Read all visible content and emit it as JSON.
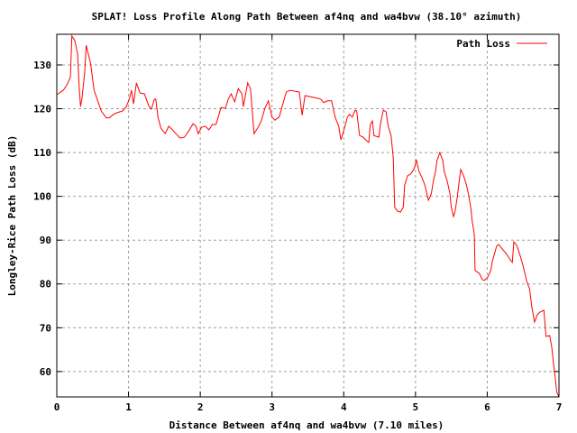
{
  "chart_data": {
    "type": "line",
    "title": "SPLAT! Loss Profile Along Path Between af4nq and wa4bvw (38.10° azimuth)",
    "xlabel": "Distance Between af4nq and wa4bvw (7.10 miles)",
    "ylabel": "Longley-Rice Path Loss (dB)",
    "xlim": [
      0,
      7
    ],
    "ylim": [
      54.2,
      137
    ],
    "xticks": [
      0,
      1,
      2,
      3,
      4,
      5,
      6,
      7
    ],
    "yticks": [
      60,
      70,
      80,
      90,
      100,
      110,
      120,
      130
    ],
    "grid": true,
    "legend_position": "top-right",
    "series": [
      {
        "name": "Path Loss",
        "color": "#ff0000",
        "x": [
          0.0,
          0.09,
          0.15,
          0.19,
          0.21,
          0.25,
          0.29,
          0.31,
          0.33,
          0.35,
          0.39,
          0.41,
          0.47,
          0.52,
          0.57,
          0.62,
          0.69,
          0.73,
          0.79,
          0.84,
          0.92,
          0.97,
          1.01,
          1.04,
          1.07,
          1.11,
          1.16,
          1.22,
          1.28,
          1.32,
          1.36,
          1.38,
          1.41,
          1.45,
          1.51,
          1.56,
          1.6,
          1.66,
          1.72,
          1.78,
          1.85,
          1.9,
          1.94,
          1.97,
          2.02,
          2.07,
          2.12,
          2.17,
          2.22,
          2.29,
          2.35,
          2.39,
          2.43,
          2.48,
          2.53,
          2.58,
          2.6,
          2.66,
          2.7,
          2.75,
          2.8,
          2.85,
          2.9,
          2.95,
          3.0,
          3.04,
          3.1,
          3.17,
          3.2,
          3.25,
          3.32,
          3.38,
          3.42,
          3.46,
          3.51,
          3.57,
          3.63,
          3.68,
          3.72,
          3.77,
          3.83,
          3.88,
          3.93,
          3.96,
          4.0,
          4.05,
          4.08,
          4.12,
          4.16,
          4.18,
          4.22,
          4.27,
          4.32,
          4.35,
          4.37,
          4.4,
          4.42,
          4.49,
          4.51,
          4.55,
          4.59,
          4.62,
          4.66,
          4.69,
          4.71,
          4.75,
          4.79,
          4.83,
          4.85,
          4.89,
          4.93,
          4.96,
          4.99,
          5.01,
          5.05,
          5.09,
          5.13,
          5.18,
          5.22,
          5.25,
          5.28,
          5.3,
          5.34,
          5.38,
          5.4,
          5.44,
          5.48,
          5.5,
          5.53,
          5.55,
          5.58,
          5.61,
          5.63,
          5.67,
          5.71,
          5.74,
          5.77,
          5.79,
          5.82,
          5.83,
          5.89,
          5.93,
          5.96,
          6.01,
          6.05,
          6.07,
          6.1,
          6.13,
          6.16,
          6.21,
          6.27,
          6.32,
          6.35,
          6.37,
          6.41,
          6.45,
          6.5,
          6.55,
          6.59,
          6.62,
          6.66,
          6.7,
          6.74,
          6.79,
          6.81,
          6.82,
          6.87,
          6.9,
          6.92,
          6.95,
          6.97,
          7.0
        ],
        "y": [
          123.2,
          124.2,
          125.7,
          127.3,
          136.6,
          135.6,
          132.5,
          125.3,
          120.5,
          122.2,
          128.4,
          134.5,
          130.4,
          124.2,
          121.8,
          119.5,
          117.9,
          117.9,
          118.7,
          119.1,
          119.5,
          120.5,
          122.2,
          124.2,
          121.1,
          125.9,
          123.6,
          123.4,
          120.7,
          119.9,
          122.2,
          122.2,
          118.1,
          115.6,
          114.3,
          116.0,
          115.4,
          114.3,
          113.3,
          113.5,
          115.2,
          116.6,
          116.0,
          114.3,
          115.8,
          116.0,
          115.2,
          116.4,
          116.4,
          120.3,
          120.1,
          122.2,
          123.4,
          121.6,
          124.6,
          123.4,
          120.5,
          125.9,
          124.6,
          114.3,
          115.6,
          117.2,
          120.1,
          121.8,
          118.1,
          117.4,
          118.1,
          122.2,
          123.8,
          124.2,
          124.0,
          123.8,
          118.5,
          123.0,
          122.8,
          122.6,
          122.4,
          122.2,
          121.4,
          121.8,
          121.8,
          118.1,
          116.0,
          112.9,
          115.0,
          118.1,
          118.7,
          118.1,
          119.7,
          119.5,
          113.9,
          113.5,
          112.7,
          112.3,
          116.4,
          117.2,
          113.9,
          113.5,
          116.4,
          119.7,
          119.3,
          116.0,
          113.9,
          108.8,
          97.5,
          96.6,
          96.4,
          97.5,
          102.6,
          104.7,
          105.1,
          105.7,
          106.7,
          108.4,
          105.7,
          104.3,
          102.6,
          99.1,
          100.6,
          103.6,
          105.7,
          108.2,
          110.0,
          108.2,
          105.7,
          103.6,
          100.6,
          97.5,
          95.4,
          96.4,
          99.5,
          103.6,
          106.1,
          104.7,
          102.6,
          100.4,
          97.5,
          94.4,
          91.3,
          83.1,
          82.4,
          81.0,
          80.8,
          81.6,
          83.1,
          85.1,
          86.8,
          88.6,
          89.0,
          88.0,
          86.8,
          85.5,
          84.9,
          89.6,
          88.8,
          87.0,
          84.1,
          80.6,
          78.9,
          74.8,
          71.3,
          73.0,
          73.6,
          74.0,
          69.7,
          68.0,
          68.2,
          65.6,
          62.5,
          58.3,
          55.3,
          54.2
        ]
      }
    ]
  }
}
